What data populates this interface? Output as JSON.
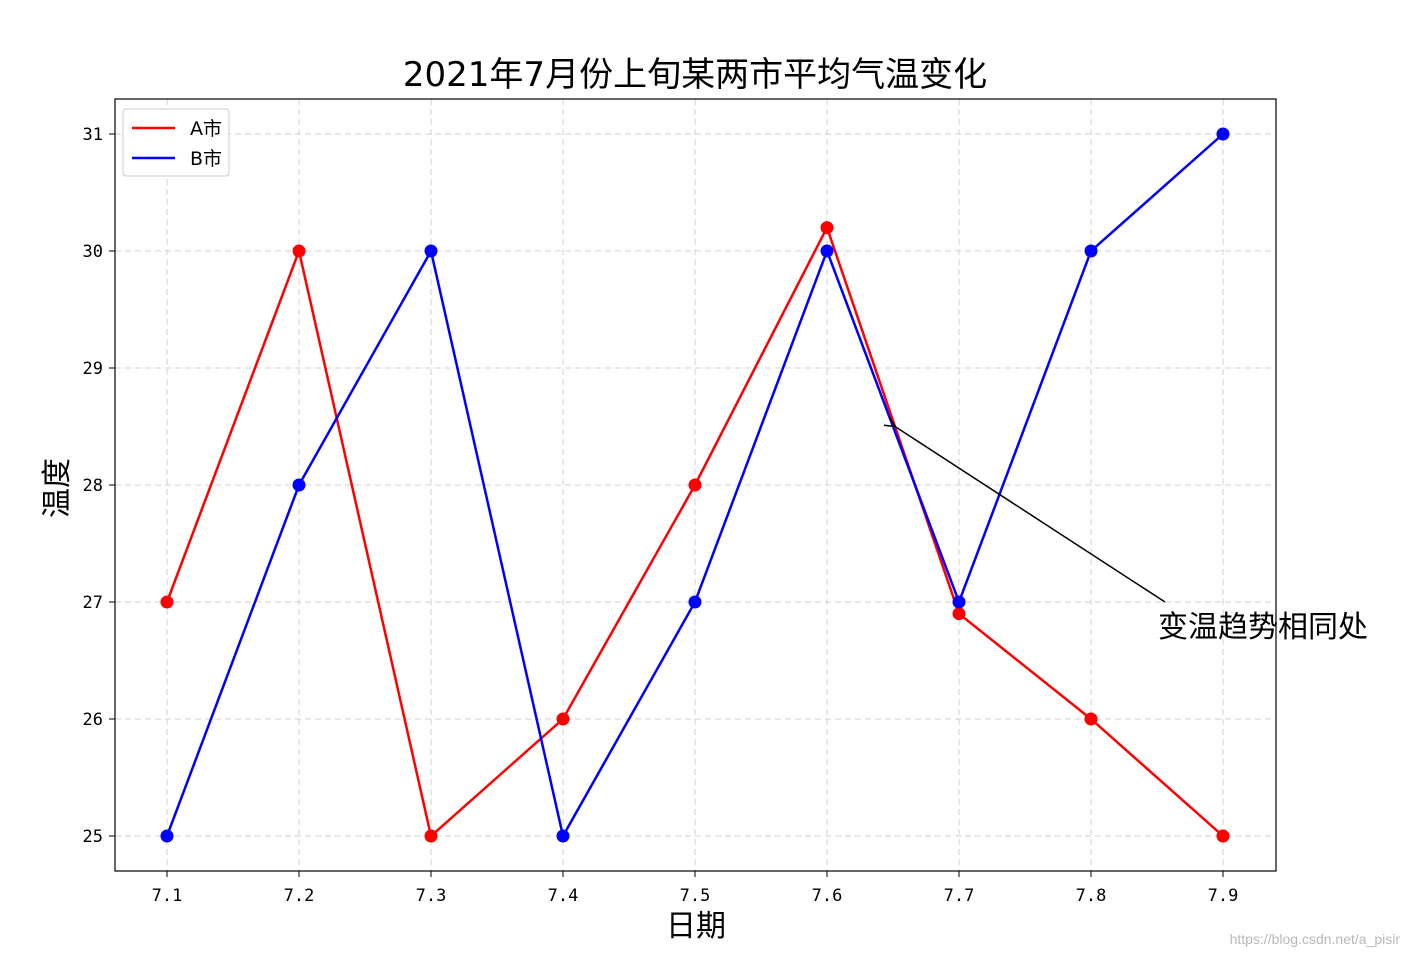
{
  "chart_data": {
    "type": "line",
    "title": "2021年7月份上旬某两市平均气温变化",
    "xlabel": "日期",
    "ylabel": "温度",
    "categories": [
      "7.1",
      "7.2",
      "7.3",
      "7.4",
      "7.5",
      "7.6",
      "7.7",
      "7.8",
      "7.9"
    ],
    "x_tick_labels": [
      "7.1",
      "7.2",
      "7.3",
      "7.4",
      "7.5",
      "7.6",
      "7.7",
      "7.8",
      "7.9"
    ],
    "yticks": [
      "25",
      "26",
      "27",
      "28",
      "29",
      "30",
      "31"
    ],
    "ylim": [
      24.7,
      31.3
    ],
    "grid": true,
    "legend_position": "top-left",
    "series": [
      {
        "name": "A市",
        "color": "#ff0000",
        "values": [
          27,
          30,
          25,
          26,
          28,
          30.2,
          26.9,
          26,
          25
        ]
      },
      {
        "name": "B市",
        "color": "#0000ff",
        "values": [
          25,
          28,
          30,
          25,
          27,
          30,
          27,
          30,
          31
        ]
      }
    ],
    "annotation": {
      "text": "变温趋势相同处",
      "arrow_target": {
        "x": 7.65,
        "y": 28.5
      },
      "text_anchor": {
        "x": 7.85,
        "y": 27
      }
    }
  },
  "watermark": "https://blog.csdn.net/a_pisir"
}
